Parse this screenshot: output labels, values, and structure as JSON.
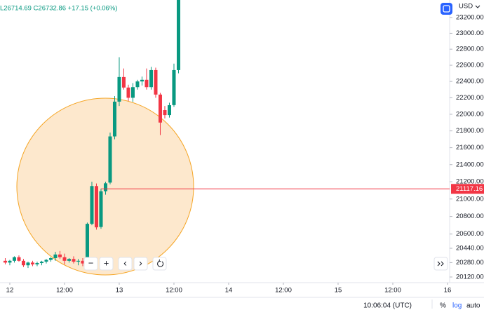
{
  "chart_data": {
    "type": "candlestick",
    "legend_text": "L26714.69  C26732.86  +17.15 (+0.06%)",
    "currency": "USD",
    "log_scale": true,
    "grid": false,
    "up_color": "#089981",
    "down_color": "#f23645",
    "x": [
      -1,
      0,
      1,
      2,
      3,
      4,
      5,
      6,
      7,
      8,
      9,
      10,
      11,
      12,
      13,
      14,
      15,
      16,
      17,
      18,
      19,
      20,
      21,
      22,
      23,
      24,
      25,
      26,
      27,
      28,
      29,
      30,
      31,
      32,
      33,
      34,
      35,
      36,
      37
    ],
    "open": [
      20300,
      20280,
      20300,
      20340,
      20300,
      20250,
      20280,
      20260,
      20275,
      20290,
      20310,
      20330,
      20370,
      20340,
      20300,
      20320,
      20290,
      20300,
      20265,
      20716,
      21150,
      20680,
      21090,
      21190,
      21734,
      22153,
      22454,
      22325,
      22200,
      22330,
      22400,
      22420,
      22330,
      22540,
      22239,
      22050,
      21990,
      22111,
      22540
    ],
    "high": [
      20330,
      20310,
      20350,
      20360,
      20320,
      20290,
      20300,
      20290,
      20300,
      20320,
      20340,
      20400,
      20410,
      20380,
      20330,
      20350,
      20320,
      20330,
      20730,
      21200,
      21180,
      21120,
      21200,
      21780,
      22220,
      22700,
      22560,
      22360,
      22380,
      22420,
      22460,
      22560,
      22580,
      22570,
      22260,
      22100,
      22140,
      22620,
      23424
    ],
    "low": [
      20260,
      20250,
      20280,
      20290,
      20230,
      20220,
      20240,
      20240,
      20250,
      20270,
      20290,
      20300,
      20320,
      20260,
      20280,
      20270,
      20250,
      20240,
      20250,
      20700,
      20650,
      20660,
      21050,
      21170,
      21700,
      22100,
      22300,
      22160,
      22150,
      22300,
      22350,
      22300,
      22300,
      22200,
      21750,
      21950,
      21960,
      22090,
      22500
    ],
    "close": [
      20280,
      20300,
      20340,
      20300,
      20250,
      20280,
      20260,
      20275,
      20290,
      20310,
      20330,
      20370,
      20340,
      20300,
      20320,
      20290,
      20300,
      20270,
      20716,
      21150,
      20676,
      21090,
      21182,
      21734,
      22153,
      22454,
      22325,
      22200,
      22330,
      22400,
      22420,
      22330,
      22540,
      22239,
      21900,
      21990,
      22110,
      22540,
      23424
    ],
    "xlim": [
      -2.15,
      96.31
    ],
    "xticks": [
      {
        "value": 0,
        "label": "12"
      },
      {
        "value": 12,
        "label": "12:00"
      },
      {
        "value": 24,
        "label": "13"
      },
      {
        "value": 36,
        "label": "12:00"
      },
      {
        "value": 48,
        "label": "14"
      },
      {
        "value": 60,
        "label": "12:00"
      },
      {
        "value": 72,
        "label": "15"
      },
      {
        "value": 84,
        "label": "12:00"
      },
      {
        "value": 96,
        "label": "16"
      }
    ],
    "ylim": [
      20081,
      23424
    ],
    "yticks": [
      {
        "value": 23200,
        "label": "23200.00"
      },
      {
        "value": 23000,
        "label": "23000.00"
      },
      {
        "value": 22800,
        "label": "22800.00"
      },
      {
        "value": 22600,
        "label": "22600.00"
      },
      {
        "value": 22400,
        "label": "22400.00"
      },
      {
        "value": 22200,
        "label": "22200.00"
      },
      {
        "value": 22000,
        "label": "22000.00"
      },
      {
        "value": 21800,
        "label": "21800.00"
      },
      {
        "value": 21600,
        "label": "21600.00"
      },
      {
        "value": 21400,
        "label": "21400.00"
      },
      {
        "value": 21200,
        "label": "21200.00"
      },
      {
        "value": 21000,
        "label": "21000.00"
      },
      {
        "value": 20800,
        "label": "20800.00"
      },
      {
        "value": 20600,
        "label": "20600.00"
      },
      {
        "value": 20440,
        "label": "20440.00"
      },
      {
        "value": 20280,
        "label": "20280.00"
      },
      {
        "value": 20120,
        "label": "20120.00"
      }
    ],
    "price_line": 21117.16,
    "price_line_color": "#f23645",
    "footer": {
      "time": "10:06:04 (UTC)",
      "percent": "%",
      "log": "log",
      "auto": "auto"
    },
    "controls": [
      "−",
      "+",
      "‹",
      "›"
    ]
  }
}
